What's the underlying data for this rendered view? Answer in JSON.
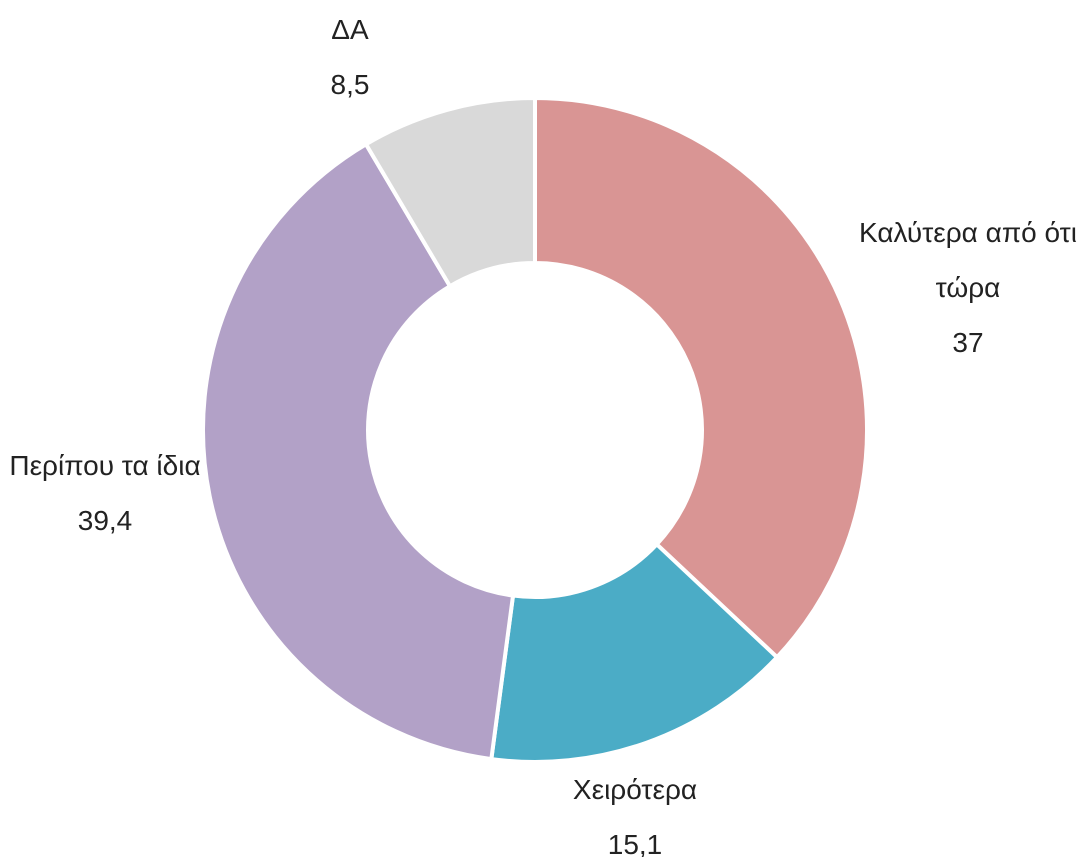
{
  "chart_data": {
    "type": "donut",
    "categories": [
      "Καλύτερα από ότι τώρα",
      "Χειρότερα",
      "Περίπου τα ίδια",
      "ΔΑ"
    ],
    "values": [
      37,
      15.1,
      39.4,
      8.5
    ],
    "value_labels": [
      "37",
      "15,1",
      "39,4",
      "8,5"
    ],
    "colors": [
      "#d99594",
      "#4bacc6",
      "#b2a1c7",
      "#d9d9d9"
    ]
  }
}
